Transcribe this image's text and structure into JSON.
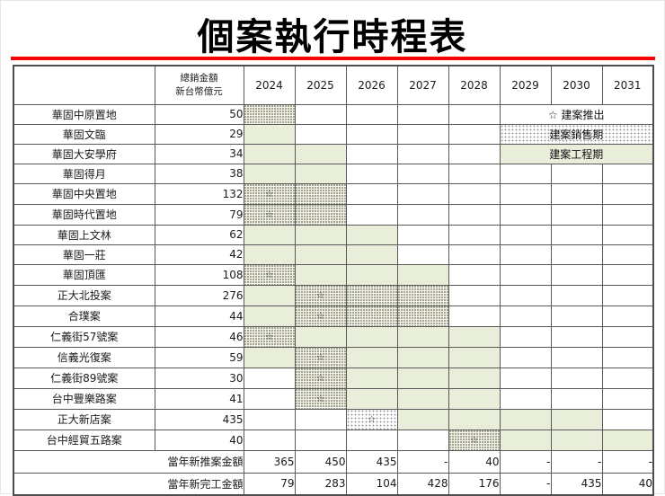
{
  "title": "個案執行時程表",
  "accent": {
    "rule_color": "#fe0000",
    "construction_fill": "#e8eeda",
    "sales_pattern_bg": "#f4f4ea",
    "sales_pattern_dot": "#8b8b76",
    "border_color": "#595959"
  },
  "icons": {
    "star": "☆"
  },
  "legend": {
    "launch": "☆ 建案推出",
    "sales": "建案銷售期",
    "construction": "建案工程期"
  },
  "chart_data": {
    "type": "table",
    "subtype": "gantt-schedule",
    "title": "個案執行時程表",
    "amount_header": [
      "總銷金額",
      "新台幣億元"
    ],
    "years": [
      "2024",
      "2025",
      "2026",
      "2027",
      "2028",
      "2029",
      "2030",
      "2031"
    ],
    "cell_codes": {
      "B": "建案工程期(綠底)",
      "S": "建案銷售期(點狀)",
      "S*": "建案銷售期(點狀)+☆建案推出",
      "L*": "建案銷售期(白底點狀)+☆建案推出",
      "": "空白"
    },
    "rows": [
      {
        "name": "華固中原置地",
        "amount": "50",
        "cells": [
          "S",
          "",
          "",
          "",
          "",
          "",
          "",
          ""
        ],
        "legend": "launch"
      },
      {
        "name": "華固文臨",
        "amount": "29",
        "cells": [
          "B",
          "",
          "",
          "",
          "",
          "",
          "",
          ""
        ],
        "legend": "sales"
      },
      {
        "name": "華固大安學府",
        "amount": "34",
        "cells": [
          "B",
          "B",
          "",
          "",
          "",
          "",
          "",
          ""
        ],
        "legend": "construction"
      },
      {
        "name": "華固得月",
        "amount": "38",
        "cells": [
          "B",
          "B",
          "",
          "",
          "",
          "",
          "",
          ""
        ]
      },
      {
        "name": "華固中央置地",
        "amount": "132",
        "cells": [
          "S*",
          "S",
          "",
          "",
          "",
          "",
          "",
          ""
        ]
      },
      {
        "name": "華固時代置地",
        "amount": "79",
        "cells": [
          "S*",
          "S",
          "",
          "",
          "",
          "",
          "",
          ""
        ]
      },
      {
        "name": "華固上文林",
        "amount": "62",
        "cells": [
          "B",
          "B",
          "B",
          "",
          "",
          "",
          "",
          ""
        ]
      },
      {
        "name": "華固一莊",
        "amount": "42",
        "cells": [
          "B",
          "B",
          "B",
          "",
          "",
          "",
          "",
          ""
        ]
      },
      {
        "name": "華固頂匯",
        "amount": "108",
        "cells": [
          "S*",
          "B",
          "B",
          "B",
          "",
          "",
          "",
          ""
        ]
      },
      {
        "name": "正大北投案",
        "amount": "276",
        "cells": [
          "B",
          "S*",
          "S",
          "S",
          "",
          "",
          "",
          ""
        ]
      },
      {
        "name": "合璞案",
        "amount": "44",
        "cells": [
          "B",
          "S*",
          "S",
          "S",
          "",
          "",
          "",
          ""
        ]
      },
      {
        "name": "仁義街57號案",
        "amount": "46",
        "cells": [
          "S*",
          "B",
          "B",
          "B",
          "B",
          "",
          "",
          ""
        ]
      },
      {
        "name": "信義光復案",
        "amount": "59",
        "cells": [
          "B",
          "S*",
          "B",
          "B",
          "B",
          "",
          "",
          ""
        ]
      },
      {
        "name": "仁義街89號案",
        "amount": "30",
        "cells": [
          "",
          "S*",
          "B",
          "B",
          "B",
          "",
          "",
          ""
        ]
      },
      {
        "name": "台中豐樂路案",
        "amount": "41",
        "cells": [
          "",
          "S*",
          "B",
          "B",
          "B",
          "",
          "",
          ""
        ]
      },
      {
        "name": "正大新店案",
        "amount": "435",
        "cells": [
          "",
          "",
          "L*",
          "B",
          "B",
          "B",
          "B",
          ""
        ]
      },
      {
        "name": "台中經貿五路案",
        "amount": "40",
        "cells": [
          "",
          "",
          "",
          "",
          "S*",
          "B",
          "B",
          "B"
        ]
      }
    ],
    "footer": [
      {
        "label": "當年新推案金額",
        "values": [
          "365",
          "450",
          "435",
          "-",
          "40",
          "-",
          "-",
          "-"
        ]
      },
      {
        "label": "當年新完工金額",
        "values": [
          "79",
          "283",
          "104",
          "428",
          "176",
          "-",
          "435",
          "40"
        ]
      }
    ]
  }
}
